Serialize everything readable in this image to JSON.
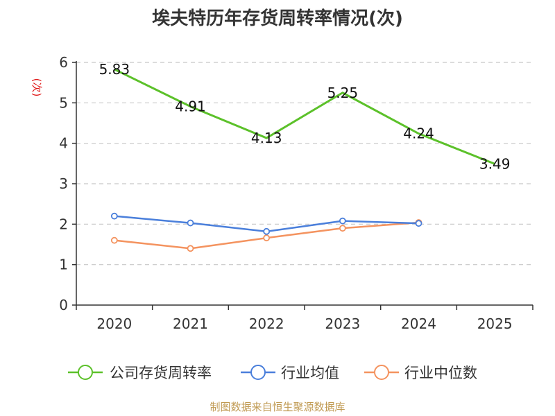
{
  "chart_data": {
    "type": "line",
    "title": "埃夫特历年存货周转率情况(次)",
    "ylabel": "(次)",
    "xlabel": "",
    "categories": [
      "2020",
      "2021",
      "2022",
      "2023",
      "2024",
      "2025"
    ],
    "ylim": [
      0,
      6
    ],
    "yticks": [
      0,
      1,
      2,
      3,
      4,
      5,
      6
    ],
    "grid": true,
    "legend_position": "bottom",
    "series": [
      {
        "name": "公司存货周转率",
        "color": "#5cc12a",
        "values": [
          5.83,
          4.91,
          4.13,
          5.25,
          4.24,
          3.49
        ],
        "labels": [
          "5.83",
          "4.91",
          "4.13",
          "5.25",
          "4.24",
          "3.49"
        ]
      },
      {
        "name": "行业均值",
        "color": "#4a7fdb",
        "values": [
          2.2,
          2.03,
          1.82,
          2.08,
          2.02,
          null
        ]
      },
      {
        "name": "行业中位数",
        "color": "#f4935f",
        "values": [
          1.6,
          1.4,
          1.66,
          1.9,
          2.04,
          null
        ]
      }
    ]
  },
  "source": "制图数据来自恒生聚源数据库"
}
